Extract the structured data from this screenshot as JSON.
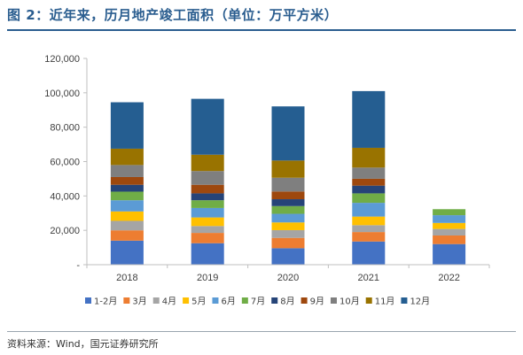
{
  "title": "图 2：近年来，历月地产竣工面积（单位：万平方米）",
  "source": "资料来源：Wind，国元证券研究所",
  "chart_data": {
    "type": "bar",
    "stacked": true,
    "title": "",
    "xlabel": "",
    "ylabel": "",
    "categories": [
      "2018",
      "2019",
      "2020",
      "2021",
      "2022"
    ],
    "ylim": [
      0,
      120000
    ],
    "yticks": [
      0,
      20000,
      40000,
      60000,
      80000,
      100000,
      120000
    ],
    "ytick_labels": [
      "-",
      "20,000",
      "40,000",
      "60,000",
      "80,000",
      "100,000",
      "120,000"
    ],
    "legend_position": "bottom",
    "series": [
      {
        "name": "1-2月",
        "color": "#4472c4",
        "values": [
          14000,
          12500,
          9600,
          13500,
          12000
        ]
      },
      {
        "name": "3月",
        "color": "#ed7d31",
        "values": [
          6000,
          6000,
          6000,
          5500,
          5000
        ]
      },
      {
        "name": "4月",
        "color": "#a5a5a5",
        "values": [
          5500,
          4000,
          4500,
          4000,
          3800
        ]
      },
      {
        "name": "5月",
        "color": "#ffc000",
        "values": [
          5500,
          5000,
          4500,
          5000,
          3500
        ]
      },
      {
        "name": "6月",
        "color": "#5b9bd5",
        "values": [
          6500,
          5500,
          5000,
          8000,
          4500
        ]
      },
      {
        "name": "7月",
        "color": "#70ad47",
        "values": [
          5000,
          4500,
          4500,
          5500,
          3500
        ]
      },
      {
        "name": "8月",
        "color": "#264478",
        "values": [
          4000,
          4000,
          4000,
          4500,
          0
        ]
      },
      {
        "name": "9月",
        "color": "#9e480e",
        "values": [
          4500,
          5000,
          4500,
          4000,
          0
        ]
      },
      {
        "name": "10月",
        "color": "#7f7f7f",
        "values": [
          7000,
          8000,
          8000,
          6500,
          0
        ]
      },
      {
        "name": "11月",
        "color": "#997300",
        "values": [
          9500,
          9500,
          10000,
          11500,
          0
        ]
      },
      {
        "name": "12月",
        "color": "#255e91",
        "values": [
          27000,
          32500,
          31500,
          33000,
          0
        ]
      }
    ]
  }
}
